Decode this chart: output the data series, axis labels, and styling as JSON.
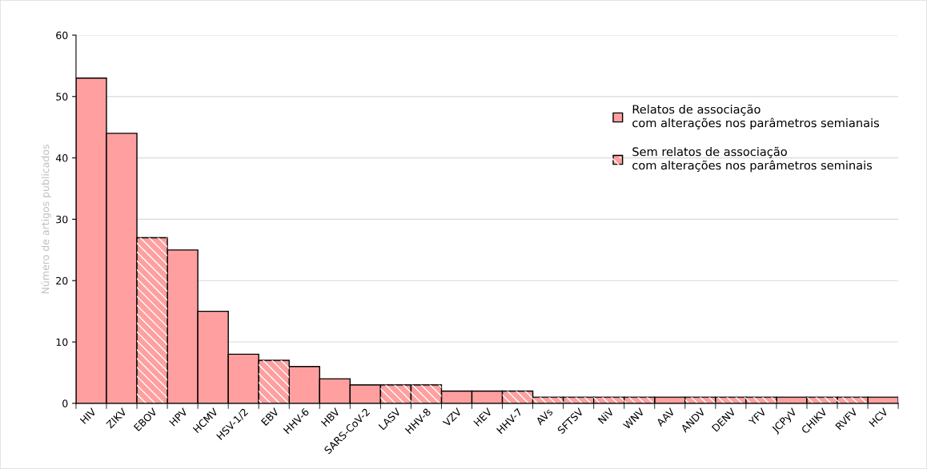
{
  "chart_data": {
    "type": "bar",
    "ylabel": "Número de artigos publicados",
    "categories": [
      "HIV",
      "ZIKV",
      "EBOV",
      "HPV",
      "HCMV",
      "HSV-1/2",
      "EBV",
      "HHV-6",
      "HBV",
      "SARS-CoV-2",
      "LASV",
      "HHV-8",
      "VZV",
      "HEV",
      "HHV-7",
      "AVs",
      "SFTSV",
      "NiV",
      "WNV",
      "AAV",
      "ANDV",
      "DENV",
      "YFV",
      "JCPyV",
      "CHIKV",
      "RVFV",
      "HCV"
    ],
    "series": [
      {
        "name": "Relatos de associação com alterações nos parâmetros semianais",
        "color": "#ff9f9f",
        "values": [
          53,
          44,
          null,
          25,
          15,
          8,
          null,
          6,
          4,
          3,
          null,
          null,
          2,
          2,
          null,
          null,
          null,
          null,
          null,
          1,
          null,
          null,
          null,
          1,
          null,
          null,
          1
        ]
      },
      {
        "name": "Sem relatos de associação com alterações nos parâmetros seminais",
        "color": "#ff9f9f",
        "values": [
          null,
          null,
          27,
          null,
          null,
          null,
          7,
          null,
          null,
          null,
          3,
          3,
          null,
          null,
          2,
          1,
          1,
          1,
          1,
          null,
          1,
          1,
          1,
          null,
          1,
          1,
          null
        ]
      }
    ],
    "ylim": [
      0,
      60
    ],
    "yticks": [
      0,
      10,
      20,
      30,
      40,
      50,
      60
    ],
    "grid": "y",
    "legend": "right"
  }
}
